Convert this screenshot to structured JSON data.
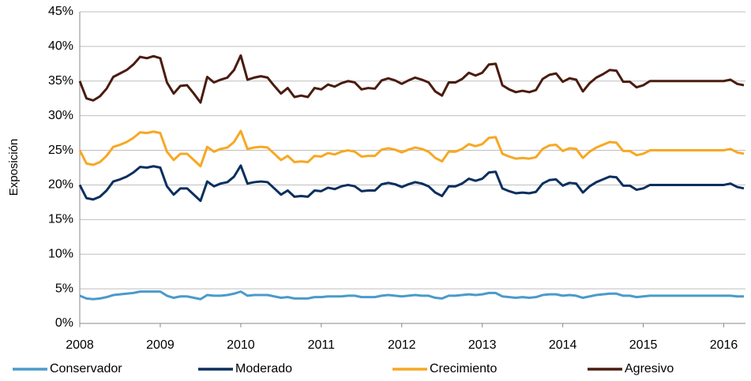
{
  "chart_data": {
    "type": "line",
    "y_label": "Exposición",
    "categories": [
      "2008",
      null,
      null,
      null,
      null,
      null,
      null,
      null,
      null,
      null,
      null,
      null,
      "2009",
      null,
      null,
      null,
      null,
      null,
      null,
      null,
      null,
      null,
      null,
      null,
      "2010",
      null,
      null,
      null,
      null,
      null,
      null,
      null,
      null,
      null,
      null,
      null,
      "2011",
      null,
      null,
      null,
      null,
      null,
      null,
      null,
      null,
      null,
      null,
      null,
      "2012",
      null,
      null,
      null,
      null,
      null,
      null,
      null,
      null,
      null,
      null,
      null,
      "2013",
      null,
      null,
      null,
      null,
      null,
      null,
      null,
      null,
      null,
      null,
      null,
      "2014",
      null,
      null,
      null,
      null,
      null,
      null,
      null,
      null,
      null,
      null,
      null,
      "2015",
      null,
      null,
      null,
      null,
      null,
      null,
      null,
      null,
      null,
      null,
      null,
      "2016",
      null,
      null,
      null
    ],
    "ylim": [
      0,
      45
    ],
    "yticks": [
      {
        "value": 0,
        "label": "0%"
      },
      {
        "value": 5,
        "label": "5%"
      },
      {
        "value": 10,
        "label": "10%"
      },
      {
        "value": 15,
        "label": "15%"
      },
      {
        "value": 20,
        "label": "20%"
      },
      {
        "value": 25,
        "label": "25%"
      },
      {
        "value": 30,
        "label": "30%"
      },
      {
        "value": 35,
        "label": "35%"
      },
      {
        "value": 40,
        "label": "40%"
      },
      {
        "value": 45,
        "label": "45%"
      }
    ],
    "grid": true,
    "legend": "bottom",
    "series": [
      {
        "name": "Conservador",
        "color": "#4a9bc9",
        "values": [
          4.0,
          3.6,
          3.5,
          3.6,
          3.8,
          4.1,
          4.2,
          4.3,
          4.4,
          4.6,
          4.6,
          4.6,
          4.6,
          4.0,
          3.7,
          3.9,
          3.9,
          3.7,
          3.5,
          4.1,
          4.0,
          4.0,
          4.1,
          4.3,
          4.6,
          4.0,
          4.1,
          4.1,
          4.1,
          3.9,
          3.7,
          3.8,
          3.6,
          3.6,
          3.6,
          3.8,
          3.8,
          3.9,
          3.9,
          3.9,
          4.0,
          4.0,
          3.8,
          3.8,
          3.8,
          4.0,
          4.1,
          4.0,
          3.9,
          4.0,
          4.1,
          4.0,
          4.0,
          3.7,
          3.6,
          4.0,
          4.0,
          4.1,
          4.2,
          4.1,
          4.2,
          4.4,
          4.4,
          3.9,
          3.8,
          3.7,
          3.8,
          3.7,
          3.8,
          4.1,
          4.2,
          4.2,
          4.0,
          4.1,
          4.0,
          3.7,
          3.9,
          4.1,
          4.2,
          4.3,
          4.3,
          4.0,
          4.0,
          3.8,
          3.9,
          4.0,
          4.0,
          4.0,
          4.0,
          4.0,
          4.0,
          4.0,
          4.0,
          4.0,
          4.0,
          4.0,
          4.0,
          4.0,
          3.9,
          3.9
        ]
      },
      {
        "name": "Moderado",
        "color": "#0b2f5e",
        "values": [
          20.0,
          18.1,
          17.9,
          18.3,
          19.2,
          20.5,
          20.8,
          21.2,
          21.8,
          22.6,
          22.5,
          22.7,
          22.5,
          19.8,
          18.6,
          19.5,
          19.5,
          18.6,
          17.7,
          20.5,
          19.8,
          20.2,
          20.4,
          21.2,
          22.8,
          20.2,
          20.4,
          20.5,
          20.4,
          19.5,
          18.6,
          19.2,
          18.3,
          18.4,
          18.3,
          19.2,
          19.1,
          19.6,
          19.4,
          19.8,
          20.0,
          19.8,
          19.1,
          19.2,
          19.2,
          20.1,
          20.3,
          20.1,
          19.7,
          20.1,
          20.4,
          20.2,
          19.8,
          18.9,
          18.4,
          19.8,
          19.8,
          20.2,
          20.9,
          20.6,
          20.9,
          21.8,
          21.9,
          19.5,
          19.1,
          18.8,
          18.9,
          18.8,
          19.0,
          20.2,
          20.7,
          20.8,
          19.9,
          20.3,
          20.2,
          18.9,
          19.8,
          20.4,
          20.8,
          21.2,
          21.1,
          19.9,
          19.9,
          19.3,
          19.5,
          20.0,
          20.0,
          20.0,
          20.0,
          20.0,
          20.0,
          20.0,
          20.0,
          20.0,
          20.0,
          20.0,
          20.0,
          20.2,
          19.7,
          19.5
        ]
      },
      {
        "name": "Crecimiento",
        "color": "#f7a823",
        "values": [
          25.0,
          23.1,
          22.9,
          23.3,
          24.2,
          25.5,
          25.8,
          26.2,
          26.8,
          27.6,
          27.5,
          27.7,
          27.5,
          24.8,
          23.6,
          24.5,
          24.5,
          23.6,
          22.7,
          25.5,
          24.8,
          25.2,
          25.4,
          26.2,
          27.8,
          25.2,
          25.4,
          25.5,
          25.4,
          24.5,
          23.6,
          24.2,
          23.3,
          23.4,
          23.3,
          24.2,
          24.1,
          24.6,
          24.4,
          24.8,
          25.0,
          24.8,
          24.1,
          24.2,
          24.2,
          25.1,
          25.3,
          25.1,
          24.7,
          25.1,
          25.4,
          25.2,
          24.8,
          23.9,
          23.4,
          24.8,
          24.8,
          25.2,
          25.9,
          25.6,
          25.9,
          26.8,
          26.9,
          24.5,
          24.1,
          23.8,
          23.9,
          23.8,
          24.0,
          25.2,
          25.7,
          25.8,
          24.9,
          25.3,
          25.2,
          23.9,
          24.8,
          25.4,
          25.8,
          26.2,
          26.1,
          24.9,
          24.9,
          24.3,
          24.5,
          25.0,
          25.0,
          25.0,
          25.0,
          25.0,
          25.0,
          25.0,
          25.0,
          25.0,
          25.0,
          25.0,
          25.0,
          25.2,
          24.7,
          24.5
        ]
      },
      {
        "name": "Agresivo",
        "color": "#4a1c10",
        "values": [
          35.0,
          32.5,
          32.2,
          32.8,
          33.9,
          35.6,
          36.1,
          36.6,
          37.4,
          38.5,
          38.3,
          38.6,
          38.3,
          34.8,
          33.2,
          34.3,
          34.4,
          33.2,
          31.9,
          35.6,
          34.8,
          35.2,
          35.5,
          36.6,
          38.7,
          35.2,
          35.5,
          35.7,
          35.5,
          34.3,
          33.2,
          34.0,
          32.7,
          32.9,
          32.7,
          34.0,
          33.8,
          34.5,
          34.2,
          34.7,
          35.0,
          34.8,
          33.8,
          34.0,
          33.9,
          35.1,
          35.4,
          35.1,
          34.6,
          35.1,
          35.5,
          35.2,
          34.8,
          33.5,
          32.9,
          34.8,
          34.8,
          35.3,
          36.2,
          35.8,
          36.2,
          37.4,
          37.5,
          34.4,
          33.8,
          33.4,
          33.6,
          33.4,
          33.7,
          35.3,
          35.9,
          36.1,
          34.9,
          35.4,
          35.2,
          33.5,
          34.7,
          35.5,
          36.0,
          36.6,
          36.5,
          34.9,
          34.9,
          34.1,
          34.4,
          35.0,
          35.0,
          35.0,
          35.0,
          35.0,
          35.0,
          35.0,
          35.0,
          35.0,
          35.0,
          35.0,
          35.0,
          35.2,
          34.6,
          34.4
        ]
      }
    ]
  }
}
